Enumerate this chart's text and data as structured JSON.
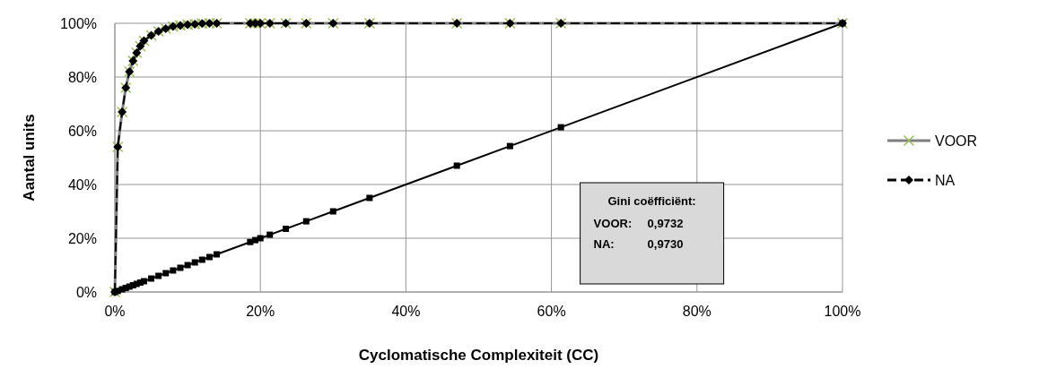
{
  "chart_data": {
    "type": "line",
    "xlabel": "Cyclomatische Complexiteit (CC)",
    "ylabel": "Aantal units",
    "xlim": [
      0,
      100
    ],
    "ylim": [
      0,
      100
    ],
    "xticks": [
      {
        "value": 0,
        "label": "0%"
      },
      {
        "value": 20,
        "label": "20%"
      },
      {
        "value": 40,
        "label": "40%"
      },
      {
        "value": 60,
        "label": "60%"
      },
      {
        "value": 80,
        "label": "80%"
      },
      {
        "value": 100,
        "label": "100%"
      }
    ],
    "yticks": [
      {
        "value": 0,
        "label": "0%"
      },
      {
        "value": 20,
        "label": "20%"
      },
      {
        "value": 40,
        "label": "40%"
      },
      {
        "value": 60,
        "label": "60%"
      },
      {
        "value": 80,
        "label": "80%"
      },
      {
        "value": 100,
        "label": "100%"
      }
    ],
    "grid": true,
    "legend": "right",
    "x": [
      0,
      0.4,
      1,
      1.5,
      2,
      2.5,
      3,
      3.5,
      4,
      5,
      6,
      7,
      8,
      9,
      10,
      11,
      12,
      13,
      14,
      18.6,
      19.3,
      20,
      21.3,
      23.5,
      26.3,
      30,
      35,
      47,
      54.3,
      61.3,
      100
    ],
    "series": [
      {
        "name": "VOOR",
        "color": "#7f7f7f",
        "colors": [
          "#9bbb59",
          "#9bbb59",
          "#9bbb59",
          "#9bbb59",
          "#9bbb59",
          "#9bbb59",
          "#9bbb59",
          "#9bbb59",
          "#9bbb59",
          "#9bbb59",
          "#9bbb59",
          "#9bbb59",
          "#9bbb59",
          "#9bbb59",
          "#9bbb59",
          "#9bbb59",
          "#9bbb59",
          "#9bbb59",
          "#9bbb59",
          "#9bbb59",
          "#9bbb59",
          "#9bbb59",
          "#9bbb59",
          "#9bbb59",
          "#9bbb59",
          "#9bbb59",
          "#9bbb59",
          "#9bbb59",
          "#9bbb59",
          "#9bbb59",
          "#9bbb59"
        ],
        "marker": "cross",
        "line_style": "solid",
        "values": [
          0,
          54,
          67,
          76,
          82,
          86,
          89,
          91.5,
          93.5,
          95.5,
          97,
          98,
          98.8,
          99.2,
          99.5,
          99.7,
          99.9,
          100,
          100,
          100,
          100,
          100,
          100,
          100,
          100,
          100,
          100,
          100,
          100,
          100,
          100
        ]
      },
      {
        "name": "NA",
        "color": "#000000",
        "marker": "diamond",
        "line_style": "dashed",
        "values": [
          0,
          54,
          67,
          76,
          82,
          86,
          89,
          91.5,
          93.5,
          95.5,
          97,
          98,
          98.8,
          99.2,
          99.5,
          99.7,
          99.9,
          100,
          100,
          100,
          100,
          100,
          100,
          100,
          100,
          100,
          100,
          100,
          100,
          100,
          100
        ]
      },
      {
        "color": "#000000",
        "marker": "square",
        "line_style": "solid",
        "values": [
          0,
          0.4,
          1,
          1.5,
          2,
          2.5,
          3,
          3.5,
          4,
          5,
          6,
          7,
          8,
          9,
          10,
          11,
          12,
          13,
          14,
          18.6,
          19.3,
          20,
          21.3,
          23.5,
          26.3,
          30,
          35,
          47,
          54.3,
          61.3,
          100
        ]
      }
    ],
    "annotations": [
      "Gini coëfficiënt:",
      "VOOR:",
      "0,9732",
      "NA:",
      "0,9730"
    ]
  }
}
